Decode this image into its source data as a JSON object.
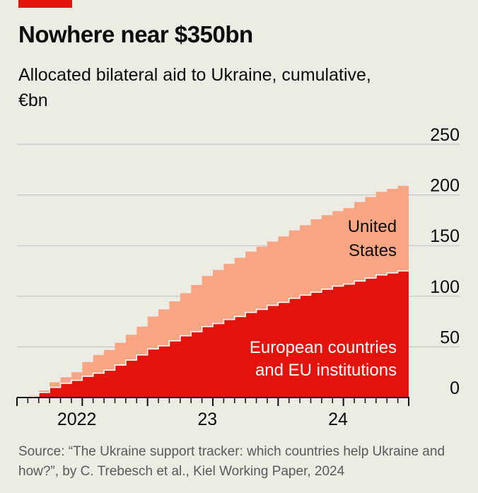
{
  "title": "Nowhere near $350bn",
  "subtitle": "Allocated bilateral aid to Ukraine, cumulative,€bn",
  "source": "Source: “The Ukraine support tracker: which countries help Ukraine and how?”, by C. Trebesch et al., Kiel Working Paper, 2024",
  "colors": {
    "background": "#ecebe4",
    "europe": "#e3120b",
    "united_states": "#f7a583",
    "brand_tag": "#e3120b",
    "grid": "#bfbfbf"
  },
  "chart_data": {
    "type": "area",
    "stacked": true,
    "step": true,
    "xlabel": "",
    "ylabel": "",
    "ylim": [
      0,
      250
    ],
    "y_ticks": [
      0,
      50,
      100,
      150,
      200,
      250
    ],
    "y_axis_side": "right",
    "x_tick_labels": [
      {
        "label": "2022",
        "month_index": 5
      },
      {
        "label": "23",
        "month_index": 17
      },
      {
        "label": "24",
        "month_index": 29
      }
    ],
    "months": [
      "2022-01",
      "2022-02",
      "2022-03",
      "2022-04",
      "2022-05",
      "2022-06",
      "2022-07",
      "2022-08",
      "2022-09",
      "2022-10",
      "2022-11",
      "2022-12",
      "2023-01",
      "2023-02",
      "2023-03",
      "2023-04",
      "2023-05",
      "2023-06",
      "2023-07",
      "2023-08",
      "2023-09",
      "2023-10",
      "2023-11",
      "2023-12",
      "2024-01",
      "2024-02",
      "2024-03",
      "2024-04",
      "2024-05",
      "2024-06",
      "2024-07",
      "2024-08",
      "2024-09",
      "2024-10",
      "2024-11",
      "2024-12"
    ],
    "series": [
      {
        "name": "European countries and EU institutions",
        "color": "#e3120b",
        "values": [
          0,
          1,
          5,
          10,
          14,
          17,
          21,
          24,
          27,
          32,
          37,
          42,
          48,
          51,
          56,
          61,
          65,
          70,
          73,
          77,
          80,
          84,
          87,
          91,
          94,
          98,
          101,
          104,
          107,
          110,
          112,
          115,
          118,
          121,
          123,
          125
        ]
      },
      {
        "name": "United States",
        "color": "#f7a583",
        "values": [
          0,
          1,
          2,
          5,
          6,
          8,
          14,
          18,
          20,
          22,
          25,
          28,
          32,
          36,
          39,
          42,
          46,
          50,
          53,
          55,
          58,
          60,
          62,
          63,
          65,
          67,
          69,
          72,
          73,
          74,
          75,
          78,
          80,
          82,
          83,
          84
        ]
      }
    ],
    "annotations": [
      {
        "series": "United States",
        "lines": [
          "United",
          "States"
        ],
        "color": "#0c0c0c"
      },
      {
        "series": "European countries and EU institutions",
        "lines": [
          "European countries",
          "and EU institutions"
        ],
        "color": "#ffffff"
      }
    ]
  }
}
